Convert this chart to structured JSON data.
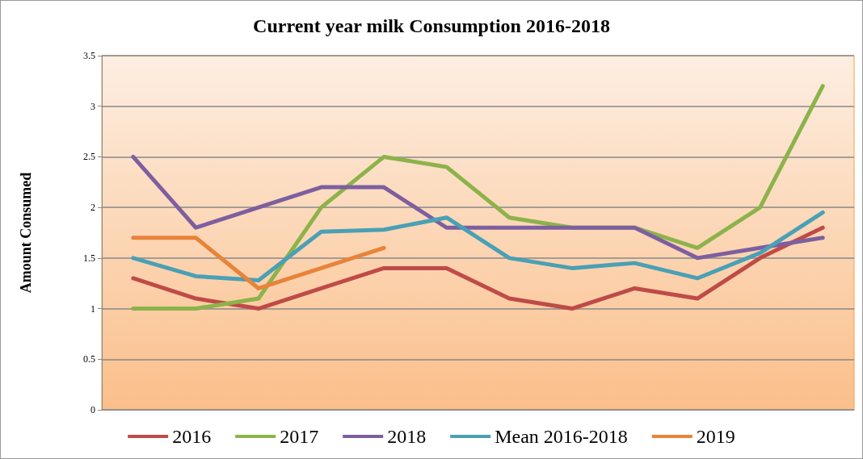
{
  "chart_data": {
    "type": "line",
    "title": "Current year milk Consumption 2016-2018",
    "ylabel": "Amount Consumed",
    "categories": [
      null,
      null,
      null,
      null,
      null,
      null,
      null,
      null,
      null,
      null,
      null,
      null
    ],
    "series": [
      {
        "name": "2016",
        "color": "#be4b48",
        "values": [
          1.3,
          1.1,
          1.0,
          1.2,
          1.4,
          1.4,
          1.1,
          1.0,
          1.2,
          1.1,
          1.5,
          1.8
        ]
      },
      {
        "name": "2017",
        "color": "#8cb34a",
        "values": [
          1.0,
          1.0,
          1.1,
          2.0,
          2.5,
          2.4,
          1.9,
          1.8,
          1.8,
          1.6,
          2.0,
          3.2
        ]
      },
      {
        "name": "2018",
        "color": "#7d5fa0",
        "values": [
          2.5,
          1.8,
          2.0,
          2.2,
          2.2,
          1.8,
          1.8,
          1.8,
          1.8,
          1.5,
          1.6,
          1.7
        ]
      },
      {
        "name": "Mean 2016-2018",
        "color": "#4aa0b5",
        "values": [
          1.5,
          1.32,
          1.28,
          1.76,
          1.78,
          1.9,
          1.5,
          1.4,
          1.45,
          1.3,
          1.55,
          1.95
        ]
      },
      {
        "name": "2019",
        "color": "#e8833a",
        "values": [
          1.7,
          1.7,
          1.2,
          1.4,
          1.6,
          null,
          null,
          null,
          null,
          null,
          null,
          null
        ]
      }
    ],
    "ylim": [
      0,
      3.5
    ],
    "yticks": [
      0,
      0.5,
      1,
      1.5,
      2,
      2.5,
      3,
      3.5
    ],
    "grid": "y",
    "legend": "bottom",
    "marker": "none",
    "line_style": "solid",
    "tick_labels": "y"
  }
}
